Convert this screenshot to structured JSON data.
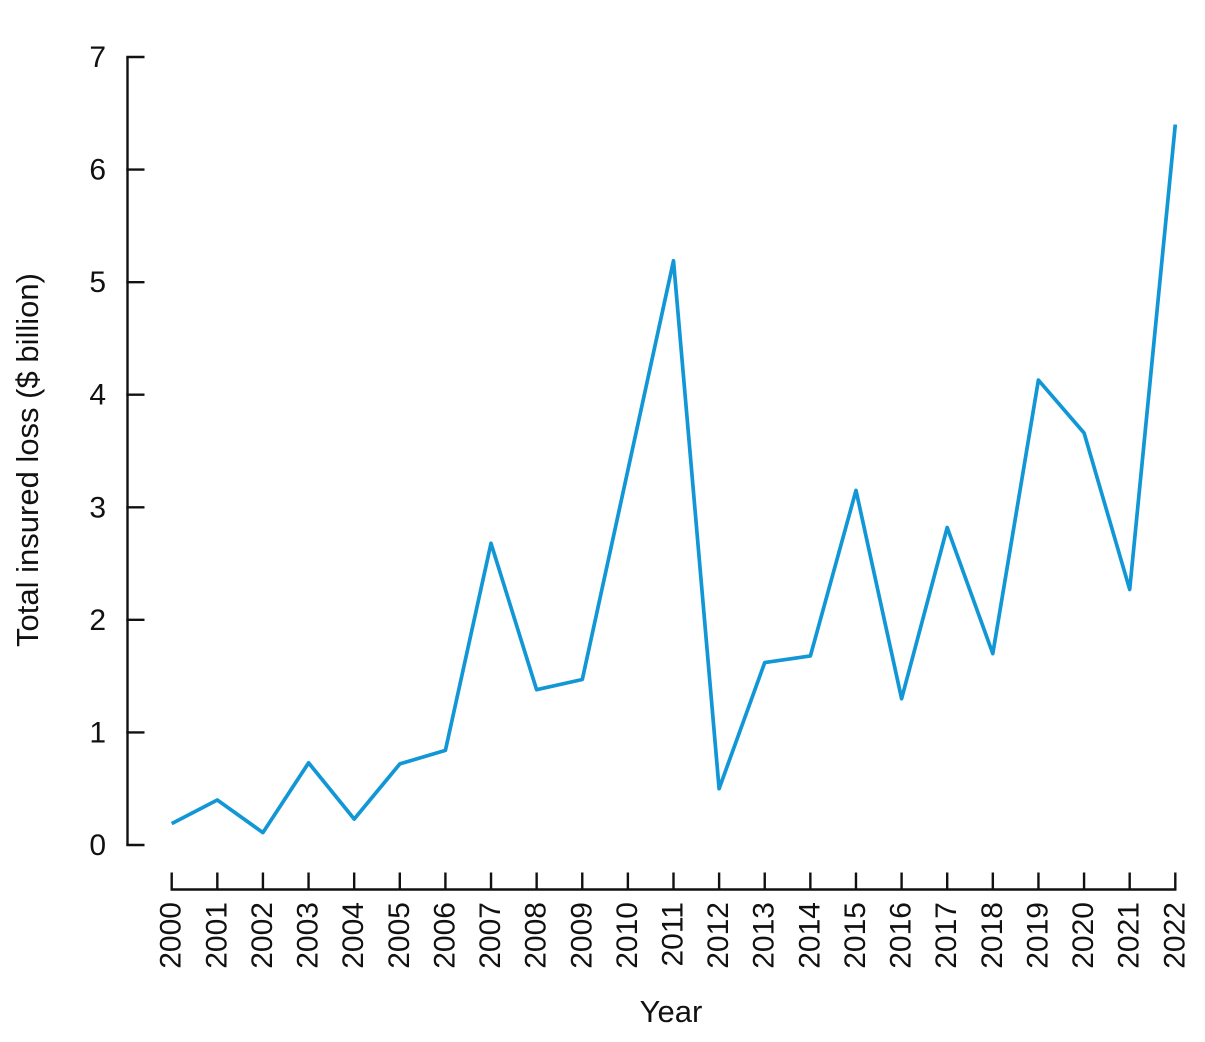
{
  "figure": {
    "background": "#ffffff"
  },
  "chart_data": {
    "type": "line",
    "title": "",
    "xlabel": "Year",
    "ylabel": "Total insured loss ($ billion)",
    "x": [
      2000,
      2001,
      2002,
      2003,
      2004,
      2005,
      2006,
      2007,
      2008,
      2009,
      2010,
      2011,
      2012,
      2013,
      2014,
      2015,
      2016,
      2017,
      2018,
      2019,
      2020,
      2021,
      2022
    ],
    "series": [
      {
        "name": "Total insured loss",
        "values": [
          0.19,
          0.4,
          0.11,
          0.73,
          0.23,
          0.72,
          0.84,
          2.68,
          1.38,
          1.47,
          3.33,
          5.19,
          0.5,
          1.62,
          1.68,
          3.15,
          1.3,
          2.82,
          1.7,
          4.13,
          3.66,
          2.27,
          6.4
        ]
      }
    ],
    "ylim": [
      0,
      7
    ],
    "yticks": [
      0,
      1,
      2,
      3,
      4,
      5,
      6,
      7
    ],
    "grid": false,
    "legend_position": "none",
    "line_color": "#1297D6",
    "axis_color": "#111111"
  }
}
